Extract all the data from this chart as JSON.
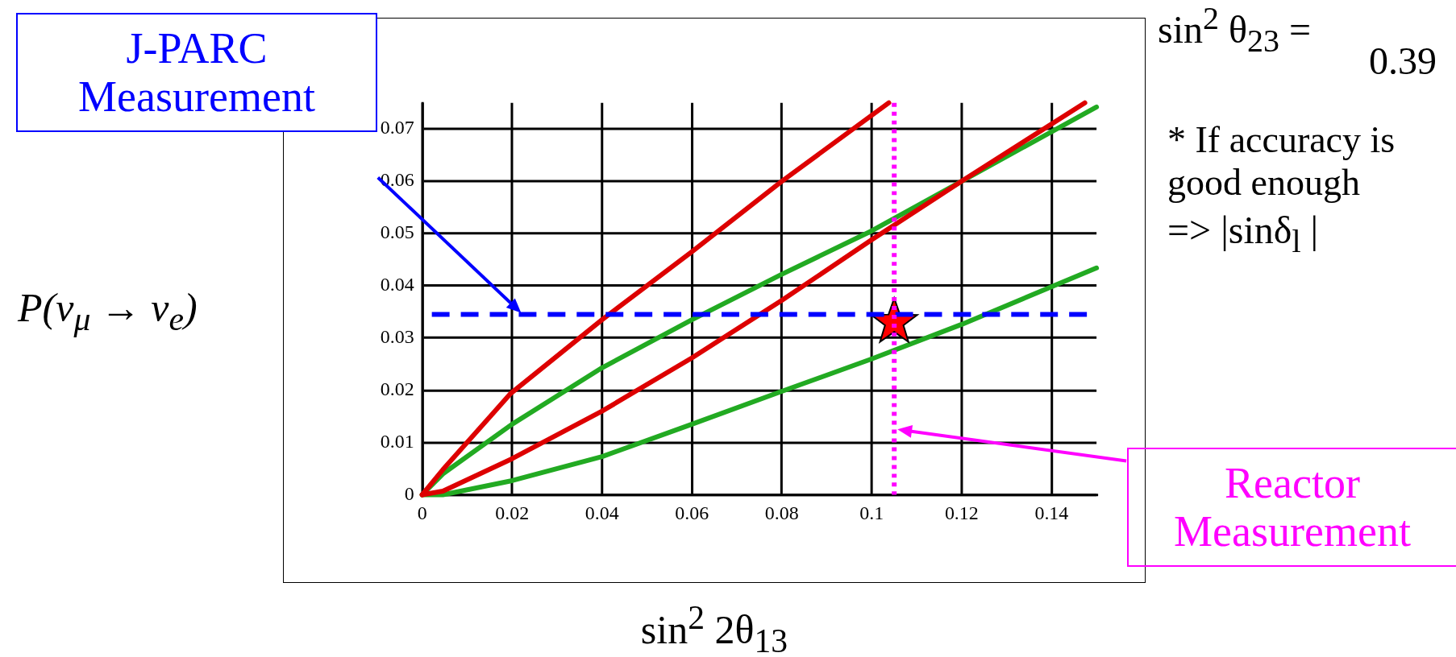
{
  "chart_data": {
    "type": "line",
    "xlabel": "sin$^{2}$ 2θ$_{13}$",
    "ylabel": "P(ν$_{μ}$ → ν$_{e}$)",
    "xlim": [
      0,
      0.15
    ],
    "xticks": [
      0,
      0.02,
      0.04,
      0.06,
      0.08,
      0.1,
      0.12,
      0.14
    ],
    "ylim": [
      0,
      0.075
    ],
    "yticks": [
      0,
      0.01,
      0.02,
      0.03,
      0.04,
      0.05,
      0.06,
      0.07
    ],
    "grid": true,
    "legend": false,
    "marker": "none",
    "line_style": "solid",
    "series": [
      {
        "color": "#dd0000",
        "x": [
          0,
          0.0046,
          0.0197,
          0.04,
          0.06,
          0.08,
          0.1038
        ],
        "values": [
          0,
          0.0048,
          0.0194,
          0.0335,
          0.0465,
          0.06,
          0.075
        ]
      },
      {
        "color": "#dd0000",
        "x": [
          0,
          0.0046,
          0.02,
          0.04,
          0.06,
          0.08,
          0.1,
          0.12,
          0.1474
        ],
        "values": [
          0,
          0.0007,
          0.0069,
          0.016,
          0.0262,
          0.0372,
          0.0488,
          0.06,
          0.075
        ]
      },
      {
        "color": "#22aa22",
        "x": [
          0,
          0.0046,
          0.02,
          0.04,
          0.06,
          0.08,
          0.1,
          0.12,
          0.15
        ],
        "values": [
          0,
          0.004,
          0.0135,
          0.0243,
          0.0335,
          0.0422,
          0.0505,
          0.06,
          0.0742
        ]
      },
      {
        "color": "#22aa22",
        "x": [
          0,
          0.0046,
          0.02,
          0.04,
          0.06,
          0.08,
          0.1,
          0.12,
          0.15
        ],
        "values": [
          0,
          0,
          0.0027,
          0.0073,
          0.0135,
          0.0198,
          0.026,
          0.0326,
          0.0434
        ]
      },
      {
        "type": "scatter",
        "marker": "star",
        "color": "#ff0000",
        "x": [
          0.105
        ],
        "values": [
          0.033
        ]
      }
    ],
    "ref_lines": [
      {
        "axis": "y",
        "value": 0.0345,
        "label": "J-PARC Measurement",
        "color": "#0000ff",
        "line_style": "dashed"
      },
      {
        "axis": "x",
        "value": 0.105,
        "label": "Reactor Measurement",
        "color": "#ff00ff",
        "line_style": "dotted"
      }
    ],
    "annotations": [
      "sin$^{2}$ θ$_{23}$ =",
      "0.39",
      "* If accuracy is good enough",
      "=> |sinδ$_{l}$ |"
    ]
  }
}
